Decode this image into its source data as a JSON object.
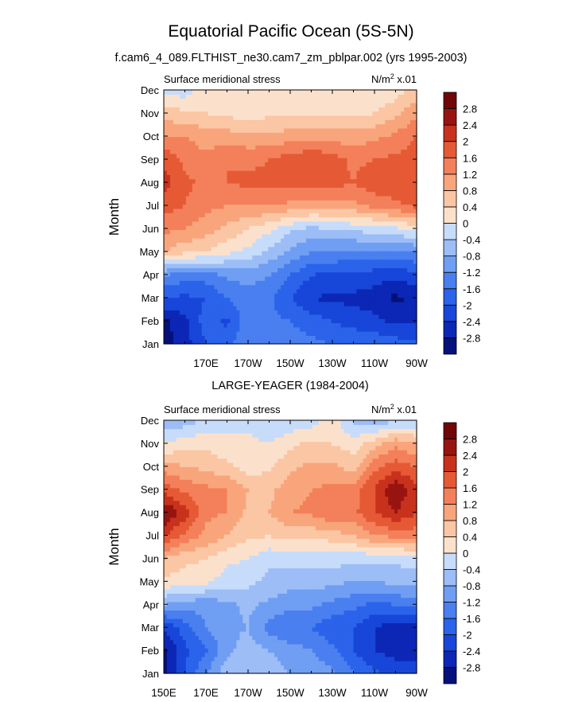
{
  "figure": {
    "title": "Equatorial Pacific Ocean (5S-5N)",
    "subtitle": "f.cam6_4_089.FLTHIST_ne30.cam7_zm_pblpar.002 (yrs 1995-2003)"
  },
  "chart_data": [
    {
      "type": "heatmap",
      "panel_title": "",
      "left_label": "Surface meridional stress",
      "right_label": "N/m",
      "right_label_sup": "2",
      "right_label_suffix": " x.01",
      "ylabel": "Month",
      "xlabel": "",
      "x_ticks": [
        "170E",
        "170W",
        "150W",
        "130W",
        "110W",
        "90W"
      ],
      "x_tick_lon": [
        170,
        190,
        210,
        230,
        250,
        270
      ],
      "xlim": [
        150,
        270
      ],
      "y_ticks": [
        "Jan",
        "Feb",
        "Mar",
        "Apr",
        "May",
        "Jun",
        "Jul",
        "Aug",
        "Sep",
        "Oct",
        "Nov",
        "Dec"
      ],
      "ylim": [
        1,
        12
      ],
      "x": [
        150,
        160,
        170,
        180,
        190,
        200,
        210,
        220,
        230,
        240,
        250,
        260,
        270
      ],
      "values": [
        [
          -3.0,
          -2.6,
          -2.0,
          -1.8,
          -1.2,
          -1.4,
          -1.4,
          -1.5,
          -1.6,
          -1.6,
          -1.7,
          -1.8,
          -1.9
        ],
        [
          -2.9,
          -2.5,
          -1.8,
          -2.1,
          -1.3,
          -1.5,
          -1.6,
          -1.8,
          -2.0,
          -2.2,
          -2.3,
          -2.5,
          -2.4
        ],
        [
          -2.0,
          -2.1,
          -2.0,
          -1.6,
          -1.4,
          -1.5,
          -2.0,
          -2.4,
          -2.5,
          -2.5,
          -2.6,
          -2.9,
          -2.7
        ],
        [
          -1.2,
          -1.4,
          -1.4,
          -1.1,
          -1.0,
          -1.2,
          -1.6,
          -2.0,
          -2.1,
          -2.1,
          -2.2,
          -2.3,
          -2.1
        ],
        [
          0.8,
          0.5,
          0.4,
          0.1,
          -0.1,
          -0.5,
          -0.9,
          -1.2,
          -1.2,
          -1.3,
          -1.3,
          -1.3,
          -1.2
        ],
        [
          1.3,
          1.2,
          1.0,
          0.7,
          0.4,
          0.1,
          -0.3,
          -0.5,
          -0.4,
          -0.3,
          -0.2,
          -0.1,
          0.2
        ],
        [
          1.8,
          1.6,
          1.3,
          1.2,
          1.2,
          1.2,
          1.1,
          1.0,
          1.0,
          1.1,
          1.3,
          1.5,
          1.7
        ],
        [
          2.2,
          1.7,
          1.5,
          1.6,
          1.7,
          1.7,
          1.7,
          1.8,
          1.8,
          1.6,
          1.9,
          1.9,
          1.9
        ],
        [
          1.9,
          1.5,
          1.3,
          1.6,
          1.5,
          1.6,
          1.8,
          2.0,
          1.8,
          1.5,
          1.6,
          1.7,
          1.8
        ],
        [
          1.2,
          1.2,
          1.0,
          1.0,
          0.9,
          0.9,
          1.0,
          1.0,
          1.0,
          1.0,
          1.1,
          1.3,
          1.6
        ],
        [
          0.6,
          0.5,
          0.4,
          0.3,
          0.2,
          0.3,
          0.3,
          0.3,
          0.3,
          0.3,
          0.4,
          0.7,
          1.1
        ],
        [
          -0.2,
          -0.2,
          0.3,
          0.3,
          0.2,
          0.2,
          0.3,
          0.2,
          0.1,
          0.0,
          0.0,
          0.2,
          0.6
        ]
      ]
    },
    {
      "type": "heatmap",
      "panel_title": "LARGE-YEAGER (1984-2004)",
      "left_label": "Surface meridional stress",
      "right_label": "N/m",
      "right_label_sup": "2",
      "right_label_suffix": " x.01",
      "ylabel": "Month",
      "xlabel": "",
      "x_ticks": [
        "150E",
        "170E",
        "170W",
        "150W",
        "130W",
        "110W",
        "90W"
      ],
      "x_tick_lon": [
        150,
        170,
        190,
        210,
        230,
        250,
        270
      ],
      "xlim": [
        150,
        270
      ],
      "y_ticks": [
        "Jan",
        "Feb",
        "Mar",
        "Apr",
        "May",
        "Jun",
        "Jul",
        "Aug",
        "Sep",
        "Oct",
        "Nov",
        "Dec"
      ],
      "ylim": [
        1,
        12
      ],
      "x": [
        150,
        160,
        170,
        180,
        190,
        200,
        210,
        220,
        230,
        240,
        250,
        260,
        270
      ],
      "values": [
        [
          -3.0,
          -2.0,
          -1.2,
          -0.5,
          -0.4,
          -0.6,
          -0.8,
          -0.9,
          -1.1,
          -1.6,
          -1.9,
          -2.1,
          -2.2
        ],
        [
          -2.9,
          -2.1,
          -1.7,
          -0.9,
          -0.6,
          -0.8,
          -1.0,
          -1.2,
          -1.5,
          -2.0,
          -2.4,
          -2.6,
          -2.6
        ],
        [
          -2.4,
          -1.8,
          -1.2,
          -0.9,
          -0.8,
          -1.4,
          -1.6,
          -1.6,
          -1.9,
          -2.0,
          -2.4,
          -2.7,
          -2.7
        ],
        [
          -0.8,
          -1.0,
          -1.1,
          -0.9,
          -0.7,
          -0.9,
          -1.1,
          -1.1,
          -1.3,
          -1.5,
          -1.7,
          -1.6,
          -1.4
        ],
        [
          0.3,
          0.2,
          0.1,
          -0.2,
          -0.3,
          -0.5,
          -0.6,
          -0.6,
          -0.7,
          -0.8,
          -0.8,
          -0.7,
          -0.6
        ],
        [
          0.8,
          0.5,
          0.4,
          0.1,
          0.0,
          -0.3,
          -0.3,
          -0.2,
          -0.2,
          -0.3,
          -0.3,
          -0.3,
          -0.2
        ],
        [
          2.0,
          1.5,
          1.1,
          0.8,
          0.5,
          0.4,
          0.6,
          0.5,
          0.6,
          0.8,
          1.2,
          1.3,
          1.4
        ],
        [
          2.9,
          2.2,
          1.3,
          1.2,
          0.7,
          0.8,
          1.2,
          1.3,
          1.6,
          1.5,
          2.0,
          2.4,
          2.0
        ],
        [
          1.8,
          1.5,
          1.3,
          1.2,
          0.8,
          0.7,
          1.0,
          1.2,
          1.3,
          1.4,
          2.0,
          2.8,
          2.1
        ],
        [
          1.0,
          0.8,
          0.7,
          0.5,
          0.2,
          0.3,
          0.7,
          0.9,
          0.9,
          0.6,
          1.5,
          1.8,
          1.6
        ],
        [
          0.0,
          0.2,
          0.3,
          0.1,
          0.1,
          0.0,
          0.3,
          0.5,
          0.4,
          0.2,
          0.6,
          1.1,
          0.8
        ],
        [
          -0.7,
          -0.6,
          -0.3,
          -0.1,
          -0.1,
          -0.4,
          -0.3,
          -0.2,
          0.2,
          -0.5,
          -0.6,
          -0.5,
          -0.4
        ]
      ]
    }
  ],
  "colorbar": {
    "levels": [
      -2.8,
      -2.4,
      -2.0,
      -1.6,
      -1.2,
      -0.8,
      -0.4,
      0,
      0.4,
      0.8,
      1.2,
      1.6,
      2.0,
      2.4,
      2.8
    ],
    "labels": [
      "-2.8",
      "-2.4",
      "-2",
      "-1.6",
      "-1.2",
      "-0.8",
      "-0.4",
      "0",
      "0.4",
      "0.8",
      "1.2",
      "1.6",
      "2",
      "2.4",
      "2.8"
    ],
    "colors": [
      "#05107a",
      "#0c27b5",
      "#1746d9",
      "#2b63ea",
      "#4a7ff0",
      "#6f9ef3",
      "#9cbdf6",
      "#c7dcfa",
      "#fbe1cc",
      "#fbc6a4",
      "#f9a57c",
      "#f3805a",
      "#e55a35",
      "#c8321d",
      "#981410",
      "#700606"
    ]
  }
}
